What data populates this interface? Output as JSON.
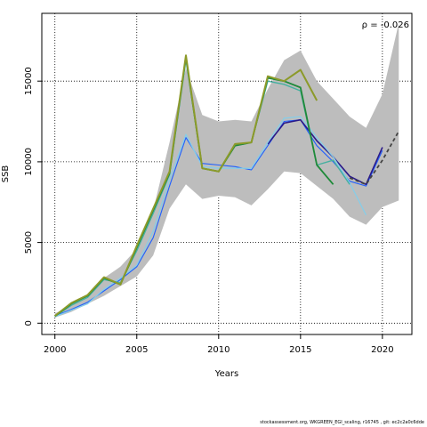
{
  "chart_data": {
    "type": "line",
    "xlabel": "Years",
    "ylabel": "SSB",
    "xlim": [
      1999.2,
      2021.8
    ],
    "ylim": [
      -700,
      19200
    ],
    "xticks": [
      2000,
      2005,
      2010,
      2015,
      2020
    ],
    "yticks": [
      0,
      5000,
      10000,
      15000
    ],
    "grid": true,
    "annotation": "ρ = -0.026",
    "band": {
      "x": [
        2000,
        2001,
        2002,
        2003,
        2004,
        2005,
        2006,
        2007,
        2008,
        2009,
        2010,
        2011,
        2012,
        2013,
        2014,
        2015,
        2016,
        2017,
        2018,
        2019,
        2020,
        2021
      ],
      "upper": [
        600,
        1100,
        1600,
        2800,
        3500,
        4600,
        7000,
        11200,
        15800,
        12900,
        12500,
        12600,
        12500,
        14500,
        16300,
        16900,
        15000,
        13900,
        12800,
        12100,
        14200,
        18600
      ],
      "lower": [
        350,
        700,
        1200,
        1700,
        2300,
        2900,
        4200,
        7100,
        8600,
        7700,
        7900,
        7800,
        7300,
        8300,
        9400,
        9300,
        8500,
        7700,
        6600,
        6100,
        7200,
        7600
      ]
    },
    "series": [
      {
        "color": "#1f5fff",
        "x": [
          2000,
          2001,
          2002,
          2003,
          2004,
          2005,
          2006,
          2007,
          2008,
          2009,
          2010,
          2011,
          2012,
          2013,
          2014,
          2015,
          2016,
          2017,
          2018,
          2019,
          2020
        ],
        "values": [
          450,
          850,
          1300,
          2000,
          2700,
          3500,
          5300,
          8500,
          11500,
          9900,
          9800,
          9700,
          9500,
          11000,
          12500,
          12600,
          11000,
          10000,
          8800,
          8500,
          10700
        ],
        "width": 1.1
      },
      {
        "color": "#2a1a8a",
        "x": [
          2013,
          2014,
          2015,
          2016,
          2017,
          2018,
          2019,
          2020
        ],
        "values": [
          11100,
          12400,
          12600,
          11300,
          10300,
          9100,
          8600,
          10900
        ],
        "width": 1.6
      },
      {
        "color": "#87cde8",
        "x": [
          2000,
          2001,
          2002,
          2003,
          2004,
          2005,
          2006,
          2007,
          2008,
          2009,
          2010,
          2011,
          2012,
          2013,
          2014,
          2015,
          2016,
          2017,
          2018,
          2019
        ],
        "values": [
          400,
          800,
          1200,
          2100,
          2800,
          3600,
          5700,
          8900,
          11700,
          9700,
          9600,
          9600,
          9600,
          11200,
          12700,
          12800,
          11500,
          10300,
          8700,
          6700
        ],
        "width": 1.3
      },
      {
        "color": "#46b0a0",
        "x": [
          2000,
          2001,
          2002,
          2003,
          2004,
          2005,
          2006,
          2007,
          2008,
          2009,
          2010,
          2011,
          2012,
          2013,
          2014,
          2015,
          2016,
          2017,
          2018
        ],
        "values": [
          420,
          1100,
          1600,
          2700,
          2500,
          4500,
          6800,
          9200,
          16300,
          9600,
          9400,
          11000,
          11200,
          15000,
          14800,
          14400,
          9800,
          10100,
          8600
        ],
        "width": 1.4
      },
      {
        "color": "#1f8a3a",
        "x": [
          2000,
          2001,
          2002,
          2003,
          2004,
          2005,
          2006,
          2007,
          2008,
          2009,
          2010,
          2011,
          2012,
          2013,
          2014,
          2015,
          2016,
          2017
        ],
        "values": [
          430,
          1200,
          1700,
          2800,
          2400,
          4700,
          7000,
          9300,
          16500,
          9600,
          9400,
          11000,
          11200,
          15200,
          15000,
          14600,
          9800,
          8600
        ],
        "width": 1.8
      },
      {
        "color": "#8c9a2a",
        "x": [
          2000,
          2001,
          2002,
          2003,
          2004,
          2005,
          2006,
          2007,
          2008,
          2009,
          2010,
          2011,
          2012,
          2013,
          2014,
          2015,
          2016
        ],
        "values": [
          450,
          1250,
          1750,
          2850,
          2400,
          4800,
          7100,
          9400,
          16600,
          9600,
          9400,
          11100,
          11200,
          15300,
          15000,
          15700,
          13800
        ],
        "width": 2.0
      },
      {
        "color": "#444444",
        "x": [
          2018,
          2019,
          2020,
          2021
        ],
        "values": [
          9000,
          8600,
          10100,
          11900
        ],
        "width": 1.8,
        "dash": "4,3"
      }
    ]
  },
  "footer": "stockassessment.org, WKGREEN_EGI_scaling, r16745 , git: ec2c2a0c6dde"
}
